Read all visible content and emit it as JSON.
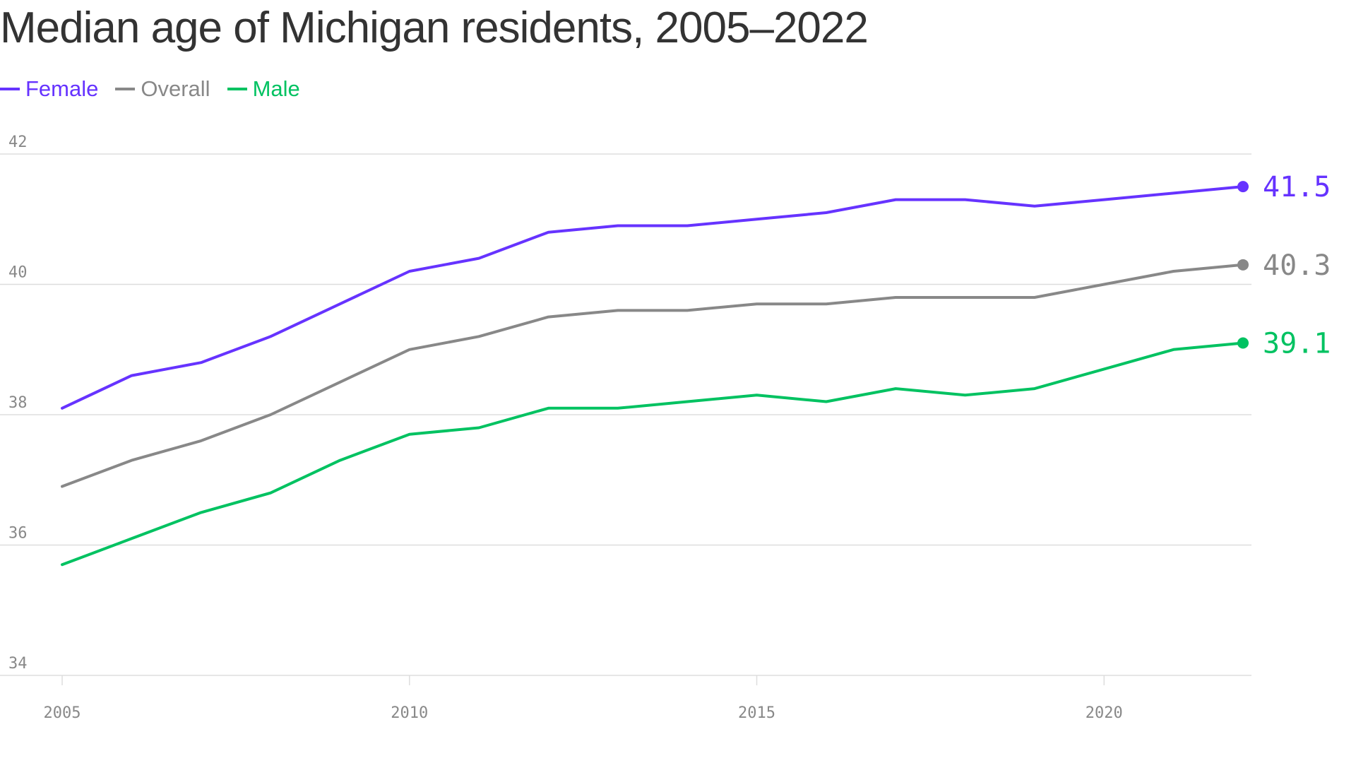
{
  "title": "Median age of Michigan residents, 2005–2022",
  "colors": {
    "Female": "#6633ff",
    "Overall": "#888888",
    "Male": "#00c261",
    "grid": "#dddddd"
  },
  "chart_data": {
    "type": "line",
    "title": "Median age of Michigan residents, 2005–2022",
    "xlabel": "",
    "ylabel": "",
    "x": [
      2005,
      2006,
      2007,
      2008,
      2009,
      2010,
      2011,
      2012,
      2013,
      2014,
      2015,
      2016,
      2017,
      2018,
      2019,
      2020,
      2021,
      2022
    ],
    "xticks": [
      2005,
      2010,
      2015,
      2020
    ],
    "yticks": [
      34,
      36,
      38,
      40,
      42
    ],
    "ylim": [
      34,
      42
    ],
    "grid": "horizontal",
    "legend": "top-left",
    "series": [
      {
        "name": "Female",
        "color": "#6633ff",
        "end_label": "41.5",
        "values": [
          38.1,
          38.6,
          38.8,
          39.2,
          39.7,
          40.2,
          40.4,
          40.8,
          40.9,
          40.9,
          41.0,
          41.1,
          41.3,
          41.3,
          41.2,
          41.3,
          41.4,
          41.5
        ]
      },
      {
        "name": "Overall",
        "color": "#888888",
        "end_label": "40.3",
        "values": [
          36.9,
          37.3,
          37.6,
          38.0,
          38.5,
          39.0,
          39.2,
          39.5,
          39.6,
          39.6,
          39.7,
          39.7,
          39.8,
          39.8,
          39.8,
          40.0,
          40.2,
          40.3
        ]
      },
      {
        "name": "Male",
        "color": "#00c261",
        "end_label": "39.1",
        "values": [
          35.7,
          36.1,
          36.5,
          36.8,
          37.3,
          37.7,
          37.8,
          38.1,
          38.1,
          38.2,
          38.3,
          38.2,
          38.4,
          38.3,
          38.4,
          38.7,
          39.0,
          39.1
        ]
      }
    ]
  }
}
